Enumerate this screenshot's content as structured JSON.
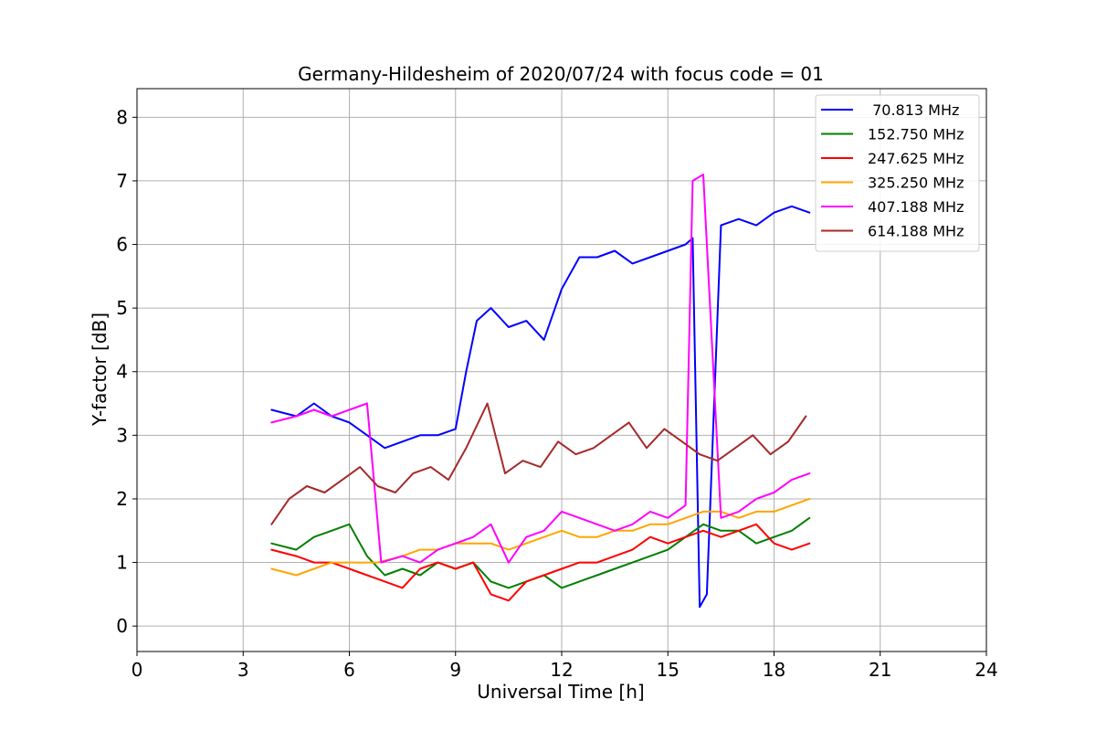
{
  "chart_data": {
    "type": "line",
    "title": "Germany-Hildesheim of 2020/07/24 with focus code = 01",
    "xlabel": "Universal Time [h]",
    "ylabel": "Y-factor [dB]",
    "xlim": [
      0,
      24
    ],
    "ylim": [
      -0.4,
      8.45
    ],
    "xticks": [
      0,
      3,
      6,
      9,
      12,
      15,
      18,
      21,
      24
    ],
    "yticks": [
      0,
      1,
      2,
      3,
      4,
      5,
      6,
      7,
      8
    ],
    "xtick_labels": [
      "0",
      "3",
      "6",
      "9",
      "12",
      "15",
      "18",
      "21",
      "24"
    ],
    "ytick_labels": [
      "0",
      "1",
      "2",
      "3",
      "4",
      "5",
      "6",
      "7",
      "8"
    ],
    "grid": true,
    "legend_position": "top-right",
    "series": [
      {
        "name": " 70.813 MHz",
        "color": "#0000ff",
        "x": [
          3.8,
          4.5,
          5.0,
          5.5,
          6.0,
          6.5,
          7.0,
          7.5,
          8.0,
          8.5,
          9.0,
          9.3,
          9.6,
          10.0,
          10.5,
          11.0,
          11.5,
          12.0,
          12.5,
          13.0,
          13.5,
          14.0,
          14.5,
          15.0,
          15.5,
          15.7,
          15.9,
          16.1,
          16.5,
          17.0,
          17.5,
          18.0,
          18.5,
          19.0
        ],
        "y": [
          3.4,
          3.3,
          3.5,
          3.3,
          3.2,
          3.0,
          2.8,
          2.9,
          3.0,
          3.0,
          3.1,
          4.0,
          4.8,
          5.0,
          4.7,
          4.8,
          4.5,
          5.3,
          5.8,
          5.8,
          5.9,
          5.7,
          5.8,
          5.9,
          6.0,
          6.1,
          0.3,
          0.5,
          6.3,
          6.4,
          6.3,
          6.5,
          6.6,
          6.5
        ]
      },
      {
        "name": "152.750 MHz",
        "color": "#008000",
        "x": [
          3.8,
          4.5,
          5.0,
          5.5,
          6.0,
          6.5,
          7.0,
          7.5,
          8.0,
          8.5,
          9.0,
          9.5,
          10.0,
          10.5,
          11.0,
          11.5,
          12.0,
          12.5,
          13.0,
          13.5,
          14.0,
          14.5,
          15.0,
          15.5,
          16.0,
          16.5,
          17.0,
          17.5,
          18.0,
          18.5,
          19.0
        ],
        "y": [
          1.3,
          1.2,
          1.4,
          1.5,
          1.6,
          1.1,
          0.8,
          0.9,
          0.8,
          1.0,
          0.9,
          1.0,
          0.7,
          0.6,
          0.7,
          0.8,
          0.6,
          0.7,
          0.8,
          0.9,
          1.0,
          1.1,
          1.2,
          1.4,
          1.6,
          1.5,
          1.5,
          1.3,
          1.4,
          1.5,
          1.7
        ]
      },
      {
        "name": "247.625 MHz",
        "color": "#ff0000",
        "x": [
          3.8,
          4.5,
          5.0,
          5.5,
          6.0,
          6.5,
          7.0,
          7.5,
          8.0,
          8.5,
          9.0,
          9.5,
          10.0,
          10.5,
          11.0,
          11.5,
          12.0,
          12.5,
          13.0,
          13.5,
          14.0,
          14.5,
          15.0,
          15.5,
          16.0,
          16.5,
          17.0,
          17.5,
          18.0,
          18.5,
          19.0
        ],
        "y": [
          1.2,
          1.1,
          1.0,
          1.0,
          0.9,
          0.8,
          0.7,
          0.6,
          0.9,
          1.0,
          0.9,
          1.0,
          0.5,
          0.4,
          0.7,
          0.8,
          0.9,
          1.0,
          1.0,
          1.1,
          1.2,
          1.4,
          1.3,
          1.4,
          1.5,
          1.4,
          1.5,
          1.6,
          1.3,
          1.2,
          1.3
        ]
      },
      {
        "name": "325.250 MHz",
        "color": "#ffa500",
        "x": [
          3.8,
          4.5,
          5.0,
          5.5,
          6.0,
          6.5,
          6.8,
          7.5,
          8.0,
          8.5,
          9.0,
          9.5,
          10.0,
          10.5,
          11.0,
          11.5,
          12.0,
          12.5,
          13.0,
          13.5,
          14.0,
          14.5,
          15.0,
          15.5,
          16.0,
          16.5,
          17.0,
          17.5,
          18.0,
          18.5,
          19.0
        ],
        "y": [
          0.9,
          0.8,
          0.9,
          1.0,
          1.0,
          1.0,
          1.0,
          1.1,
          1.2,
          1.2,
          1.3,
          1.3,
          1.3,
          1.2,
          1.3,
          1.4,
          1.5,
          1.4,
          1.4,
          1.5,
          1.5,
          1.6,
          1.6,
          1.7,
          1.8,
          1.8,
          1.7,
          1.8,
          1.8,
          1.9,
          2.0
        ]
      },
      {
        "name": "407.188 MHz",
        "color": "#ff00ff",
        "x": [
          3.8,
          4.5,
          5.0,
          5.5,
          6.0,
          6.5,
          6.9,
          7.5,
          8.0,
          8.5,
          9.0,
          9.5,
          10.0,
          10.5,
          11.0,
          11.5,
          12.0,
          12.5,
          13.0,
          13.5,
          14.0,
          14.5,
          15.0,
          15.5,
          15.7,
          16.0,
          16.5,
          17.0,
          17.5,
          18.0,
          18.5,
          19.0
        ],
        "y": [
          3.2,
          3.3,
          3.4,
          3.3,
          3.4,
          3.5,
          1.0,
          1.1,
          1.0,
          1.2,
          1.3,
          1.4,
          1.6,
          1.0,
          1.4,
          1.5,
          1.8,
          1.7,
          1.6,
          1.5,
          1.6,
          1.8,
          1.7,
          1.9,
          7.0,
          7.1,
          1.7,
          1.8,
          2.0,
          2.1,
          2.3,
          2.4
        ]
      },
      {
        "name": "614.188 MHz",
        "color": "#a52a2a",
        "x": [
          3.8,
          4.3,
          4.8,
          5.3,
          5.8,
          6.3,
          6.8,
          7.3,
          7.8,
          8.3,
          8.8,
          9.3,
          9.9,
          10.4,
          10.9,
          11.4,
          11.9,
          12.4,
          12.9,
          13.4,
          13.9,
          14.4,
          14.9,
          15.4,
          15.9,
          16.4,
          16.9,
          17.4,
          17.9,
          18.4,
          18.9
        ],
        "y": [
          1.6,
          2.0,
          2.2,
          2.1,
          2.3,
          2.5,
          2.2,
          2.1,
          2.4,
          2.5,
          2.3,
          2.8,
          3.5,
          2.4,
          2.6,
          2.5,
          2.9,
          2.7,
          2.8,
          3.0,
          3.2,
          2.8,
          3.1,
          2.9,
          2.7,
          2.6,
          2.8,
          3.0,
          2.7,
          2.9,
          3.3
        ]
      }
    ]
  }
}
